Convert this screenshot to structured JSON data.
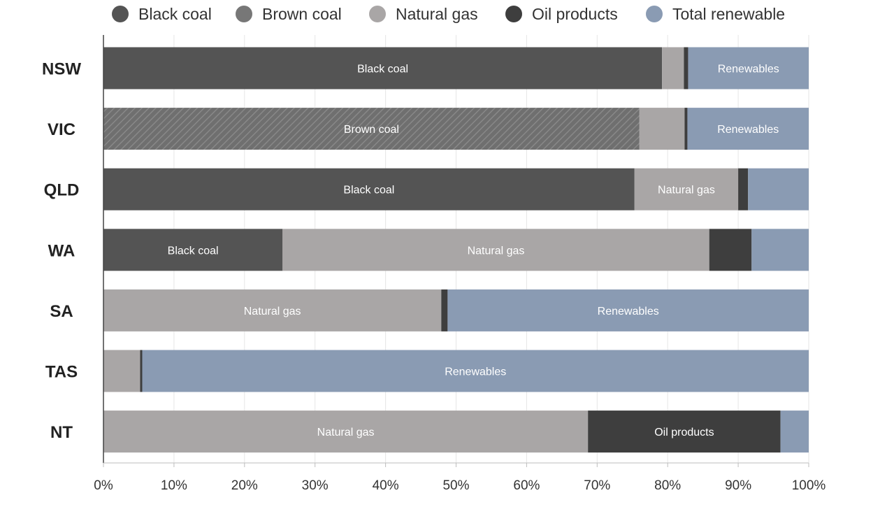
{
  "chart_data": {
    "type": "bar",
    "orientation": "horizontal",
    "stacked": true,
    "categories": [
      "NSW",
      "VIC",
      "QLD",
      "WA",
      "SA",
      "TAS",
      "NT"
    ],
    "series": [
      {
        "name": "Black coal",
        "color": "#545454",
        "pattern": "solid",
        "values": [
          79.2,
          0,
          75.3,
          25.4,
          0,
          0,
          0
        ],
        "labels": [
          "Black coal",
          "",
          "Black coal",
          "Black coal",
          "",
          "",
          ""
        ]
      },
      {
        "name": "Brown coal",
        "color": "#777777",
        "pattern": "hatched",
        "values": [
          0,
          76.0,
          0,
          0,
          0,
          0,
          0
        ],
        "labels": [
          "",
          "Brown coal",
          "",
          "",
          "",
          "",
          ""
        ]
      },
      {
        "name": "Natural gas",
        "color": "#a9a6a6",
        "pattern": "solid",
        "values": [
          3.1,
          6.4,
          14.7,
          60.5,
          47.9,
          5.2,
          68.7
        ],
        "labels": [
          "",
          "",
          "Natural gas",
          "Natural gas",
          "Natural gas",
          "",
          "Natural gas"
        ]
      },
      {
        "name": "Oil products",
        "color": "#3e3e3e",
        "pattern": "solid",
        "values": [
          0.6,
          0.4,
          1.4,
          6.0,
          0.9,
          0.3,
          27.3
        ],
        "labels": [
          "",
          "",
          "",
          "",
          "",
          "",
          "Oil products"
        ]
      },
      {
        "name": "Total renewable",
        "color": "#8a9bb3",
        "pattern": "solid",
        "values": [
          17.1,
          17.2,
          8.6,
          8.1,
          51.2,
          94.5,
          4.0
        ],
        "labels": [
          "Renewables",
          "Renewables",
          "",
          "",
          "Renewables",
          "Renewables",
          ""
        ]
      }
    ],
    "xlim": [
      0,
      100
    ],
    "x_ticks": [
      "0%",
      "10%",
      "20%",
      "30%",
      "40%",
      "50%",
      "60%",
      "70%",
      "80%",
      "90%",
      "100%"
    ],
    "grid": "vertical",
    "legend_position": "top"
  }
}
